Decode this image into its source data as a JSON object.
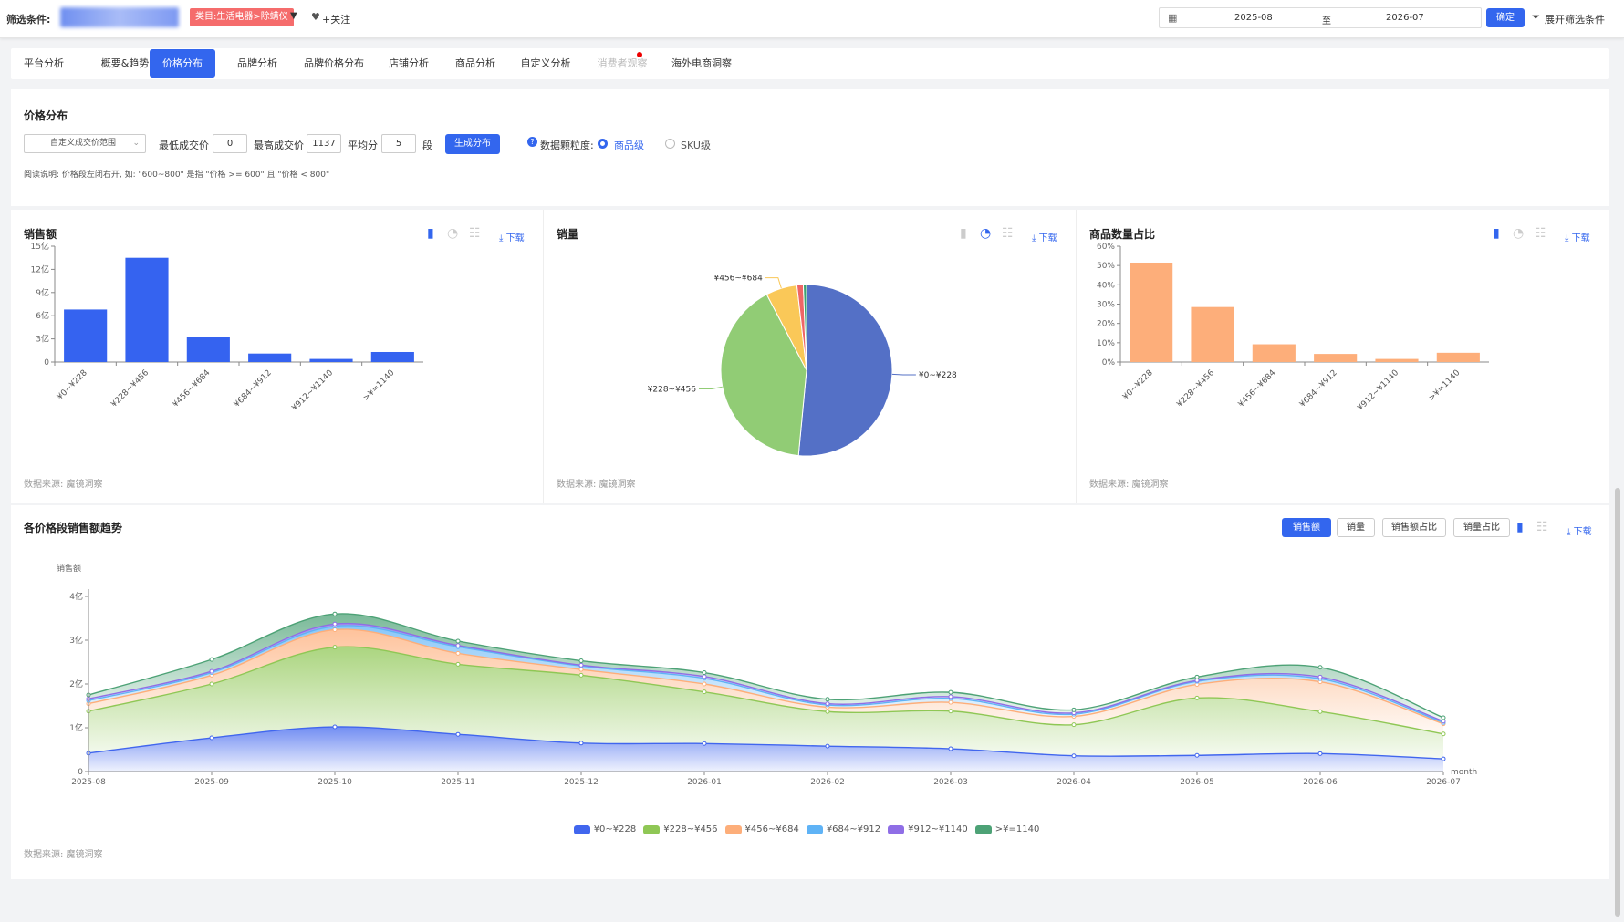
{
  "filter": {
    "label": "筛选条件:",
    "category_tag": "类目:生活电器>除螨仪",
    "follow": "+关注",
    "date_start": "2025-08",
    "date_sep": "至",
    "date_end": "2026-07",
    "confirm": "确定",
    "expand": "展开筛选条件"
  },
  "tabs": [
    "平台分析",
    "概要&趋势",
    "价格分布",
    "品牌分析",
    "品牌价格分布",
    "店铺分析",
    "商品分析",
    "自定义分析",
    "消费者观察",
    "海外电商洞察"
  ],
  "price_dist": {
    "title": "价格分布",
    "range_select": "自定义成交价范围",
    "min_label": "最低成交价",
    "min_value": "0",
    "max_label": "最高成交价",
    "max_value": "1137",
    "split_label": "平均分",
    "split_value": "5",
    "split_unit": "段",
    "generate": "生成分布",
    "granularity_label": "数据颗粒度:",
    "opt_item": "商品级",
    "opt_sku": "SKU级",
    "note": "阅读说明: 价格段左闭右开, 如: \"600~800\" 是指 \"价格 >= 600\" 且 \"价格 < 800\""
  },
  "common": {
    "download": "下载",
    "source": "数据来源: 魔镜洞察"
  },
  "sales_chart": {
    "title": "销售额",
    "chart_data": {
      "type": "bar",
      "categories": [
        "¥0~¥228",
        "¥228~¥456",
        "¥456~¥684",
        "¥684~¥912",
        "¥912~¥1140",
        ">¥=1140"
      ],
      "values": [
        6.8,
        13.5,
        3.2,
        1.1,
        0.4,
        1.3
      ],
      "yticks": [
        "0",
        "3亿",
        "6亿",
        "9亿",
        "12亿",
        "15亿"
      ],
      "ylim": [
        0,
        15
      ],
      "color": "#3563f0"
    }
  },
  "volume_chart": {
    "title": "销量",
    "chart_data": {
      "type": "pie",
      "labels": [
        "¥0~¥228",
        "¥228~¥456",
        "¥456~¥684",
        "¥684~¥912",
        "¥912~¥1140"
      ],
      "values": [
        51.5,
        40.8,
        5.9,
        1.2,
        0.6
      ],
      "colors": [
        "#5470c6",
        "#91cc75",
        "#fac858",
        "#ee6666",
        "#3ba272"
      ]
    }
  },
  "count_chart": {
    "title": "商品数量占比",
    "chart_data": {
      "type": "bar",
      "categories": [
        "¥0~¥228",
        "¥228~¥456",
        "¥456~¥684",
        "¥684~¥912",
        "¥912~¥1140",
        ">¥=1140"
      ],
      "values": [
        51.5,
        28.5,
        9.2,
        4.2,
        1.6,
        4.8
      ],
      "yticks": [
        "0%",
        "10%",
        "20%",
        "30%",
        "40%",
        "50%",
        "60%"
      ],
      "ylim": [
        0,
        60
      ],
      "color": "#fdae7a"
    }
  },
  "trend_chart": {
    "title": "各价格段销售额趋势",
    "buttons": [
      "销售额",
      "销量",
      "销售额占比",
      "销量占比"
    ],
    "chart_data": {
      "type": "area",
      "ylabel": "销售额",
      "xlabel": "month",
      "yticks": [
        "0",
        "1亿",
        "2亿",
        "3亿",
        "4亿"
      ],
      "ylim": [
        0,
        4
      ],
      "x": [
        "2025-08",
        "2025-09",
        "2025-10",
        "2025-11",
        "2025-12",
        "2026-01",
        "2026-02",
        "2026-03",
        "2026-04",
        "2026-05",
        "2026-06",
        "2026-07"
      ],
      "series": [
        {
          "name": "¥0~¥228",
          "color": "#4166ee",
          "values": [
            0.42,
            0.77,
            1.02,
            0.85,
            0.65,
            0.64,
            0.58,
            0.52,
            0.36,
            0.37,
            0.41,
            0.29
          ]
        },
        {
          "name": "¥228~¥456",
          "color": "#8fc755",
          "values": [
            0.96,
            1.23,
            1.82,
            1.6,
            1.55,
            1.18,
            0.79,
            0.86,
            0.71,
            1.31,
            0.96,
            0.57
          ]
        },
        {
          "name": "¥456~¥684",
          "color": "#fdae7a",
          "values": [
            0.17,
            0.2,
            0.4,
            0.25,
            0.13,
            0.18,
            0.1,
            0.2,
            0.19,
            0.31,
            0.68,
            0.23
          ]
        },
        {
          "name": "¥684~¥912",
          "color": "#5fb3f6",
          "values": [
            0.07,
            0.06,
            0.08,
            0.15,
            0.08,
            0.13,
            0.05,
            0.09,
            0.05,
            0.07,
            0.07,
            0.03
          ]
        },
        {
          "name": "¥912~¥1140",
          "color": "#8f6ee6",
          "values": [
            0.04,
            0.03,
            0.05,
            0.03,
            0.02,
            0.04,
            0.03,
            0.04,
            0.03,
            0.02,
            0.04,
            0.03
          ]
        },
        {
          "name": ">¥=1140",
          "color": "#4da276",
          "values": [
            0.09,
            0.27,
            0.23,
            0.1,
            0.1,
            0.09,
            0.1,
            0.1,
            0.07,
            0.08,
            0.22,
            0.08
          ]
        }
      ]
    }
  }
}
